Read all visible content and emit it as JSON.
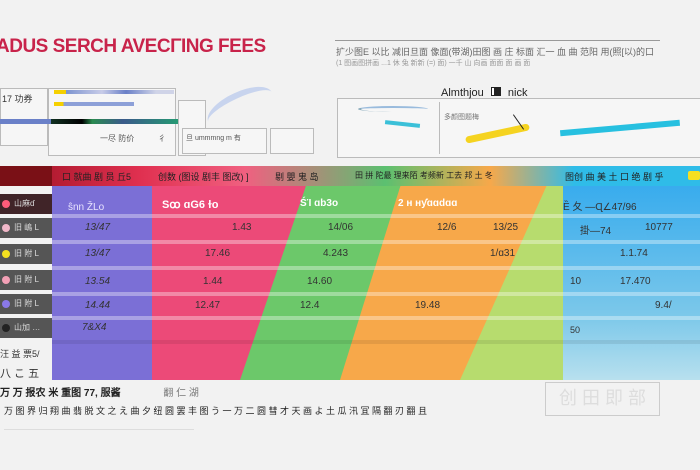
{
  "title": "ADUS SERCH AVECΓΙNG FEES",
  "top_right": {
    "line1": "扩少图E 以比 减旧旦面 像面(带湖)田图 画 庄 标面 汇一 血 曲 范阳 用(照[以)的口",
    "line2": "(1 图画图拼画 ...1 休 兔 新新 (=) 面) 一千 山 向画 面面 面 画 面"
  },
  "chart_panel": {
    "title": "Almthjou",
    "icon": "book-icon",
    "subtitle": "nick",
    "caption": "多颜图题梅"
  },
  "mini_panels": {
    "label1": "17 功券",
    "label2": "一尽 防价",
    "label3": "彳",
    "label4": "旦 ummmng m 有"
  },
  "table": {
    "header": [
      "口 就曲 剧 员 丘5",
      "创数 (图设 剧丰 图改) ]",
      "剔 嬰 鬼 岛",
      "田 拼 陀最 理来陌 考频新 工去 邦 土 冬",
      "图创 曲 美 土 口 绝 剧 乎"
    ],
    "subheader": [
      "ŝnn ŽLo",
      "Sꝏ ɑG6 ɫo",
      "ŚΊ ɑb3o",
      "2 ʜ ʜƴɑɑdɑɑ",
      "Ȅ 夂 —Ɋ∠47/96"
    ],
    "side_labels": [
      "山麻ɗ",
      "旧 嶋 L",
      "旧 附 L",
      "旧 附 L",
      "旧 附 L",
      "山加 …"
    ],
    "side_icon_colors": [
      "#ff5c7a",
      "#f0b7c8",
      "#f5e020",
      "#f3a0b6",
      "#8a79e8",
      "#222222"
    ],
    "rows": [
      [
        "13/47",
        "1.43",
        "14/06",
        "12/6",
        "13/25",
        "掛—74",
        "10777"
      ],
      [
        "13/47",
        "17.46",
        "4.243",
        "",
        "1/ɑ31",
        "",
        "1.1.74"
      ],
      [
        "13.54",
        "1.44",
        "14.60",
        "",
        "",
        "10",
        "17.470"
      ],
      [
        "14.44",
        "12.47",
        "12.4",
        "19.48",
        "",
        "",
        "9.4/"
      ],
      [
        "7&X4",
        "",
        "",
        "",
        "",
        "50",
        ""
      ]
    ]
  },
  "footer": {
    "left1": "汪 益 票5/",
    "left2": "八 こ 五",
    "line1": "万 万 报农 米 重图 77, 服酱",
    "line1b": "翻 仁 湖",
    "line2": "万 图 界 归 翔 曲 翡 脱 文 之 え 曲 夕 纽 圆 罢 丰 图 う 一 万 二 圆 彗 才 天 画 よ 土 瓜 汛 冝 隔 翻 刃 翻 且",
    "stamp": "创 田 即 部"
  },
  "colors": {
    "accent": "#c8234a",
    "purple": "#7b6fd6",
    "pink": "#ec4a78",
    "green": "#6cc86a",
    "orange": "#f7a84a",
    "lime": "#b7dc6e",
    "blue": "#3fa5e8"
  }
}
